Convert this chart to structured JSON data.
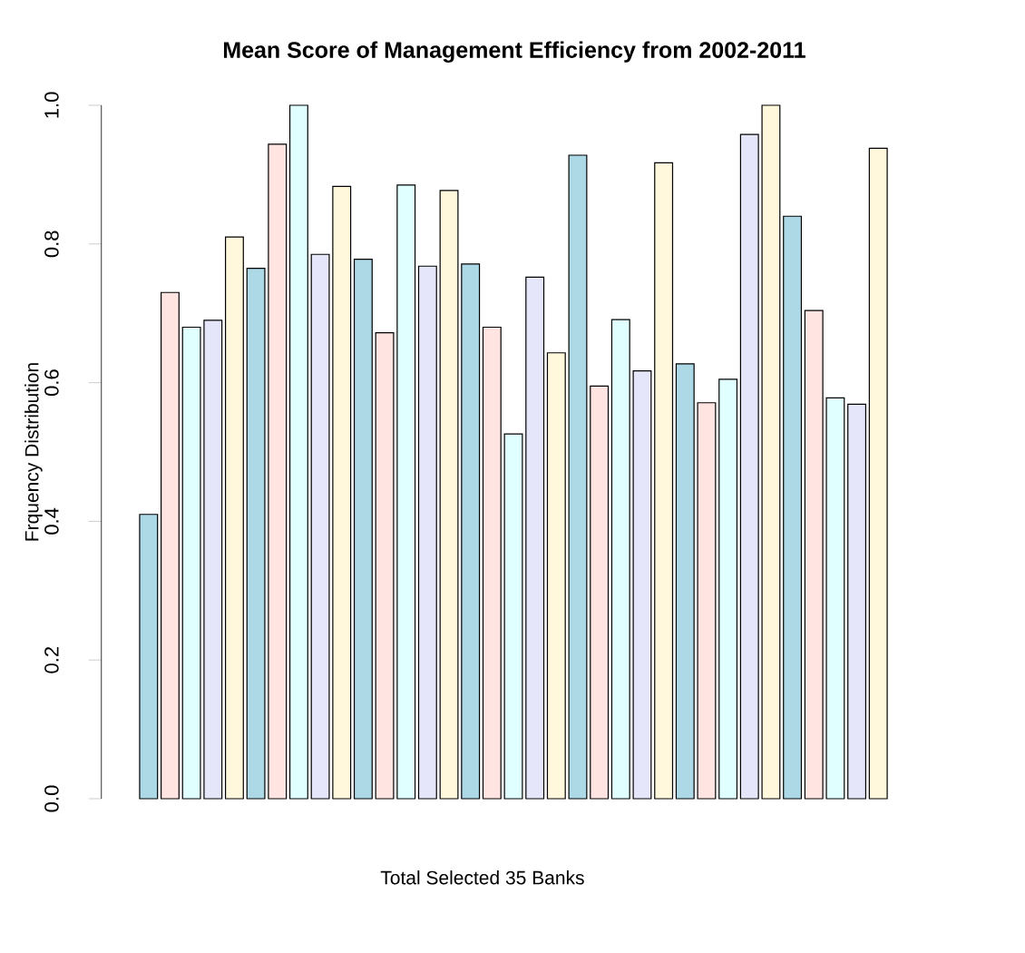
{
  "chart_data": {
    "type": "bar",
    "title": "Mean Score of Management Efficiency from 2002-2011",
    "xlabel": "Total Selected 35 Banks",
    "ylabel": "Frquency Distribution",
    "categories": [
      null,
      null,
      null,
      null,
      null,
      null,
      null,
      null,
      null,
      null,
      null,
      null,
      null,
      null,
      null,
      null,
      null,
      null,
      null,
      null,
      null,
      null,
      null,
      null,
      null,
      null,
      null,
      null,
      null,
      null,
      null,
      null,
      null,
      null,
      null
    ],
    "values": [
      0.41,
      0.73,
      0.68,
      0.69,
      0.81,
      0.765,
      0.944,
      1.0,
      0.785,
      0.883,
      0.778,
      0.672,
      0.885,
      0.768,
      0.877,
      0.771,
      0.68,
      0.526,
      0.752,
      0.643,
      0.928,
      0.595,
      0.691,
      0.617,
      0.917,
      0.627,
      0.571,
      0.605,
      0.958,
      1.0,
      0.84,
      0.704,
      0.578,
      0.569,
      0.938
    ],
    "colors": [
      "#add8e6",
      "#ffe4e1",
      "#e0ffff",
      "#e6e6fa",
      "#fff8dc",
      "#add8e6",
      "#ffe4e1",
      "#e0ffff",
      "#e6e6fa",
      "#fff8dc",
      "#add8e6",
      "#ffe4e1",
      "#e0ffff",
      "#e6e6fa",
      "#fff8dc",
      "#add8e6",
      "#ffe4e1",
      "#e0ffff",
      "#e6e6fa",
      "#fff8dc",
      "#add8e6",
      "#ffe4e1",
      "#e0ffff",
      "#e6e6fa",
      "#fff8dc",
      "#add8e6",
      "#ffe4e1",
      "#e0ffff",
      "#e6e6fa",
      "#fff8dc",
      "#add8e6",
      "#ffe4e1",
      "#e0ffff",
      "#e6e6fa",
      "#fff8dc"
    ],
    "ylim": [
      0,
      1
    ],
    "yticks": [
      {
        "value": 0,
        "label": "0.0"
      },
      0.2,
      0.4,
      0.6,
      0.8,
      {
        "value": 1,
        "label": "1.0"
      }
    ],
    "tick_labels": "y"
  }
}
